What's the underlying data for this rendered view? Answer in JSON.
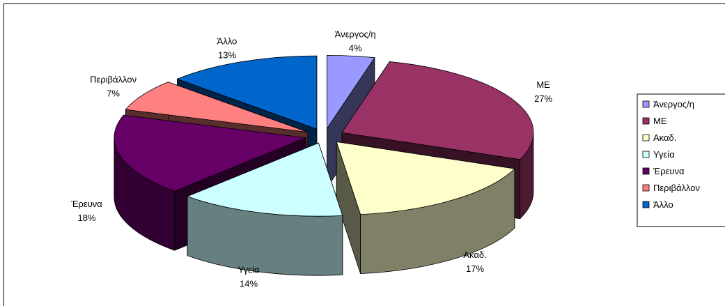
{
  "chart_data": {
    "type": "pie",
    "variant": "3d-exploded",
    "title": "",
    "categories": [
      "Άνεργος/η",
      "ΜΕ",
      "Ακαδ.",
      "Υγεία",
      "Έρευνα",
      "Περιβάλλον",
      "Άλλο"
    ],
    "values": [
      4,
      27,
      17,
      14,
      18,
      7,
      13
    ],
    "value_labels": [
      "4%",
      "27%",
      "17%",
      "14%",
      "18%",
      "7%",
      "13%"
    ],
    "colors": [
      "#9999ff",
      "#993366",
      "#ffffcc",
      "#ccffff",
      "#660066",
      "#ff8080",
      "#0066cc"
    ],
    "legend": {
      "placement": "right",
      "entries": [
        "Άνεργος/η",
        "ΜΕ",
        "Ακαδ.",
        "Υγεία",
        "Έρευνα",
        "Περιβάλλον",
        "Άλλο"
      ]
    }
  }
}
